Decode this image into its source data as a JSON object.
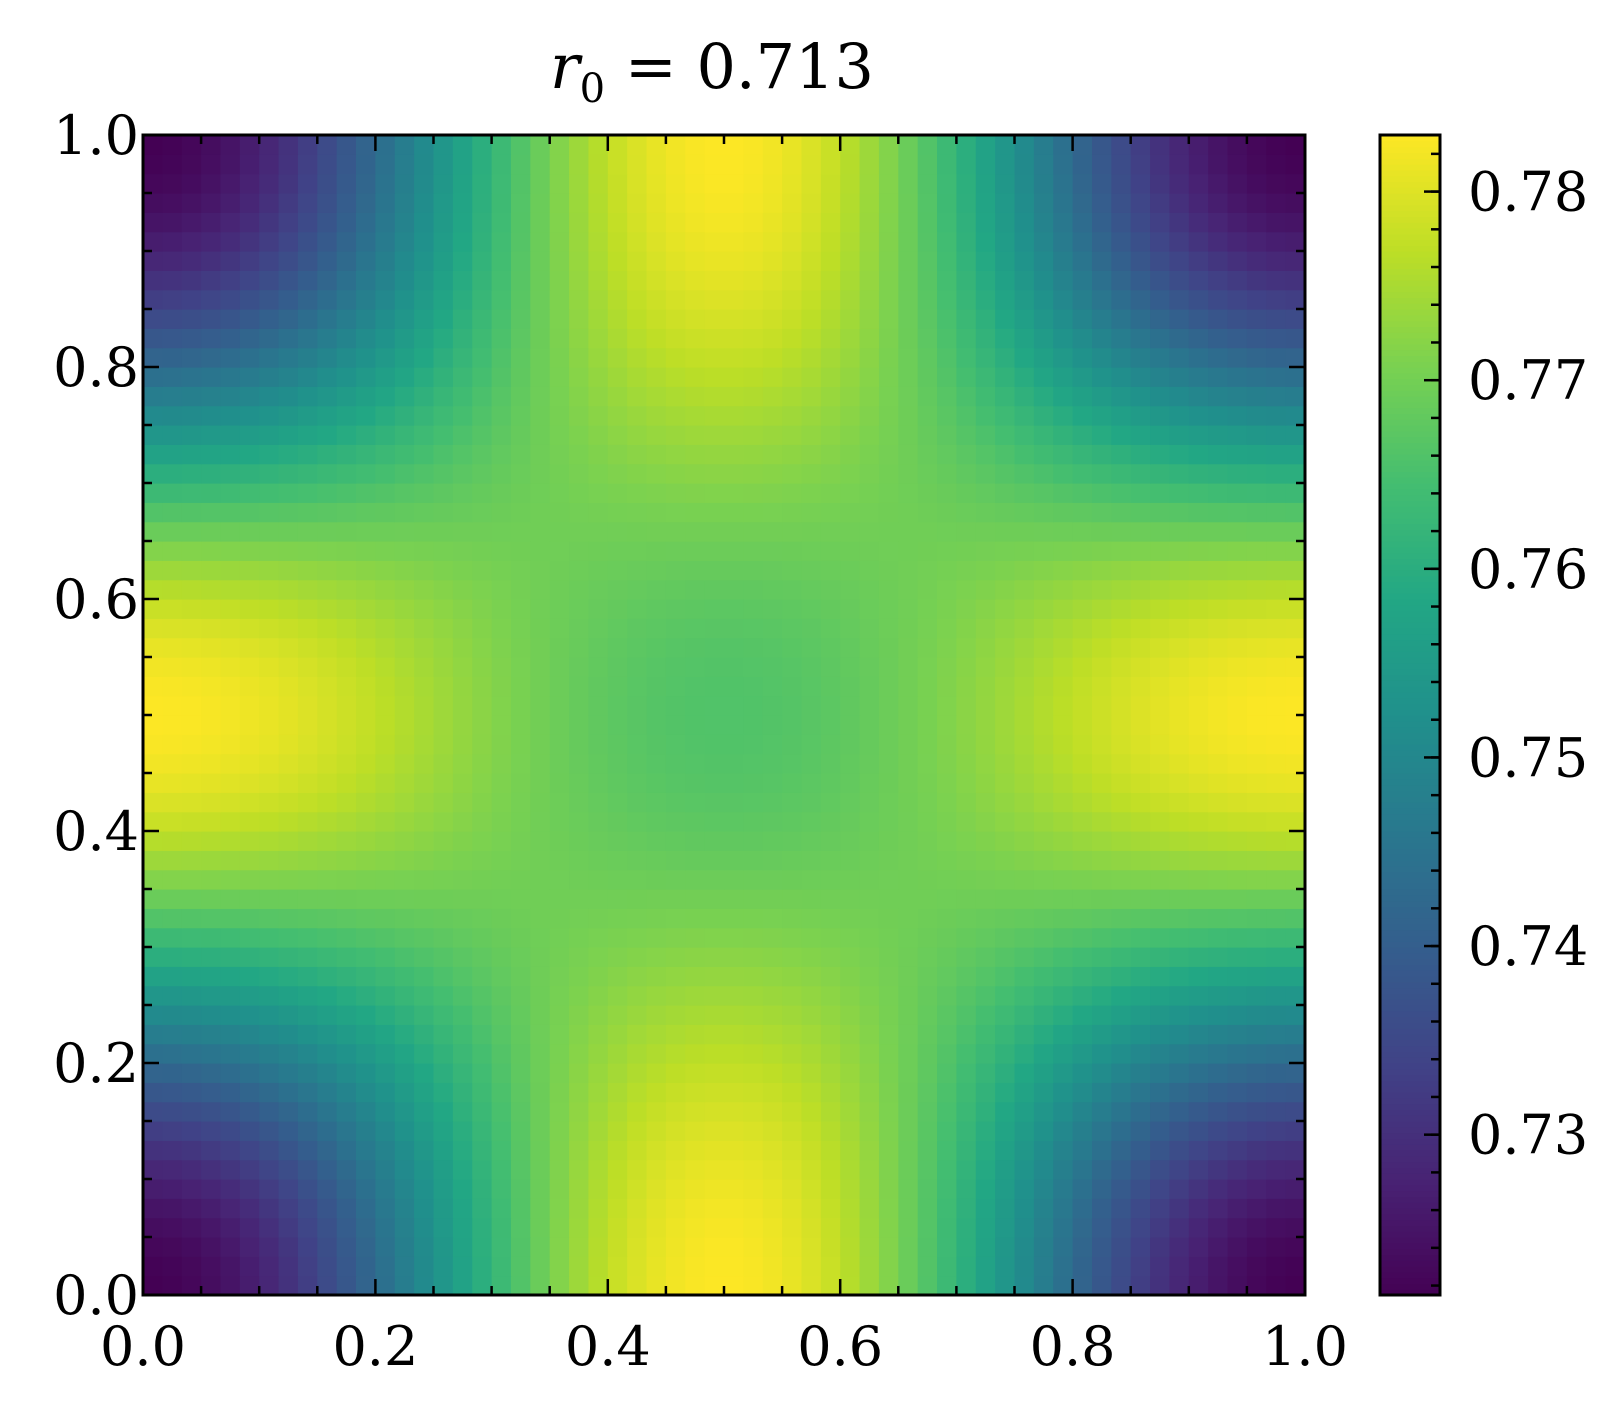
{
  "chart_data": {
    "type": "heatmap",
    "title_parts": {
      "var": "r",
      "sub": "0",
      "rest": " = 0.713"
    },
    "colormap": "viridis",
    "field": {
      "description_grid": "value = base + ax*sin^2(pi*x) + ay*sin^2(pi*y) - axy*sin^2(pi*x)*sin^2(pi*y)",
      "resolution": 60,
      "base": 0.7215,
      "ax": 0.0615,
      "ay": 0.0615,
      "axy": 0.0785
    },
    "xlim": [
      0.0,
      1.0
    ],
    "ylim": [
      0.0,
      1.0
    ],
    "x_ticks": [
      "0.0",
      "0.2",
      "0.4",
      "0.6",
      "0.8",
      "1.0"
    ],
    "y_ticks": [
      "0.0",
      "0.2",
      "0.4",
      "0.6",
      "0.8",
      "1.0"
    ],
    "colorbar": {
      "vmin": 0.7215,
      "vmax": 0.783,
      "ticks": [
        0.73,
        0.74,
        0.75,
        0.76,
        0.77,
        0.78
      ],
      "tick_labels": [
        "0.73",
        "0.74",
        "0.75",
        "0.76",
        "0.77",
        "0.78"
      ]
    },
    "xlabel": "",
    "ylabel": ""
  }
}
